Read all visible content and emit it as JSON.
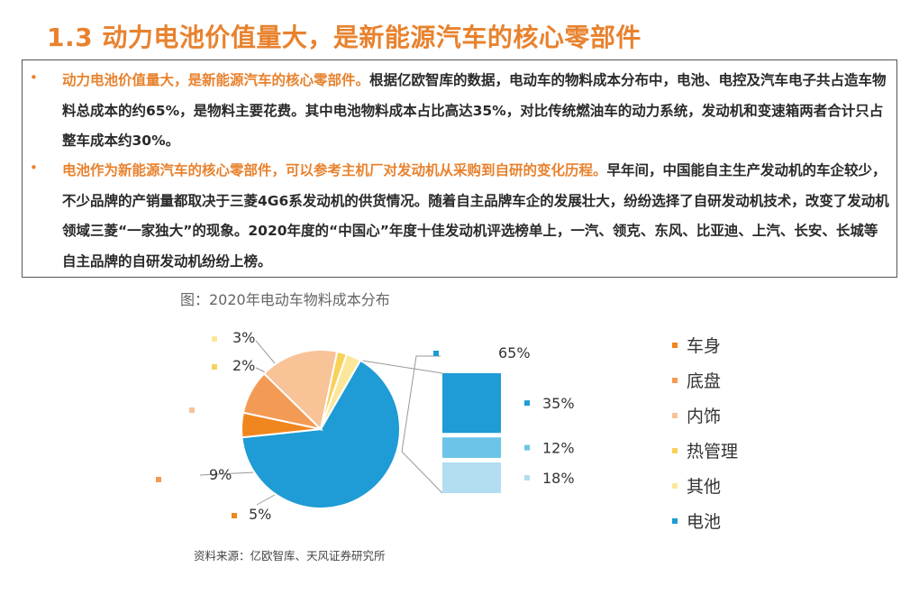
{
  "header": {
    "title": "1.3 动力电池价值量大，是新能源汽车的核心零部件"
  },
  "textbox": {
    "bullet_char": "•",
    "items": [
      {
        "highlight": "动力电池价值量大，是新能源汽车的核心零部件。",
        "body": "根据亿欧智库的数据，电动车的物料成本分布中，电池、电控及汽车电子共占造车物料总成本的约65%，是物料主要花费。其中电池物料成本占比高达35%，对比传统燃油车的动力系统，发动机和变速箱两者合计只占整车成本约30%。"
      },
      {
        "highlight": "电池作为新能源汽车的核心零部件，可以参考主机厂对发动机从采购到自研的变化历程。",
        "body": "早年间，中国能自主生产发动机的车企较少，不少品牌的产销量都取决于三菱4G6系发动机的供货情况。随着自主品牌车企的发展壮大，纷纷选择了自研发动机技术，改变了发动机领域三菱“一家独大”的现象。2020年度的“中国心”年度十佳发动机评选榜单上，一汽、领克、东风、比亚迪、上汽、长安、长城等自主品牌的自研发动机纷纷上榜。"
      }
    ]
  },
  "chart_data": {
    "type": "pie",
    "title": "图：2020年电动车物料成本分布",
    "source": "资料来源：亿欧智库、天风证券研究所",
    "slices": [
      {
        "name": "电池",
        "value": 65,
        "label": "65%",
        "color": "#1F9BD5"
      },
      {
        "name": "车身",
        "value": 5,
        "label": "5%",
        "color": "#F0861E"
      },
      {
        "name": "底盘",
        "value": 9,
        "label": "9%",
        "color": "#F39A55"
      },
      {
        "name": "内饰",
        "value": 16,
        "label": "",
        "color": "#F7C397"
      },
      {
        "name": "热管理",
        "value": 2,
        "label": "2%",
        "color": "#F7D15A"
      },
      {
        "name": "其他",
        "value": 3,
        "label": "3%",
        "color": "#FBE79A"
      }
    ],
    "breakdown": {
      "of": "电池",
      "label": "65%",
      "segments": [
        {
          "value": 35,
          "label": "35%",
          "color": "#1F9BD5"
        },
        {
          "value": 12,
          "label": "12%",
          "color": "#6CC4E8"
        },
        {
          "value": 18,
          "label": "18%",
          "color": "#B3DDF0"
        }
      ]
    },
    "legend": {
      "placement": "right",
      "items": [
        {
          "name": "车身",
          "color": "#F0861E"
        },
        {
          "name": "底盘",
          "color": "#F39A55"
        },
        {
          "name": "内饰",
          "color": "#F7C397"
        },
        {
          "name": "热管理",
          "color": "#F7D15A"
        },
        {
          "name": "其他",
          "color": "#FBE79A"
        },
        {
          "name": "电池",
          "color": "#1F9BD5"
        }
      ]
    }
  }
}
